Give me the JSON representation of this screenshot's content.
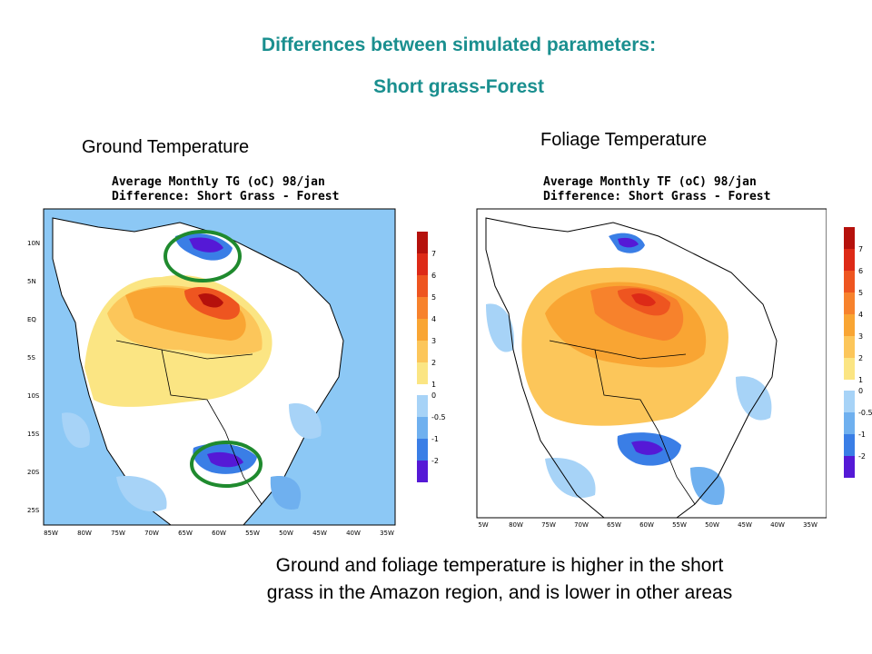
{
  "title_line1": "Differences between simulated parameters:",
  "title_line2": "Short grass-Forest",
  "title_color": "#1a8f8f",
  "ground": {
    "label": "Ground Temperature",
    "header_line1": "Average Monthly TG (oC) 98/jan",
    "header_line2": "Difference: Short Grass - Forest",
    "lat_ticks": [
      "10N",
      "5N",
      "EQ",
      "5S",
      "10S",
      "15S",
      "20S",
      "25S"
    ],
    "lon_ticks": [
      "85W",
      "80W",
      "75W",
      "70W",
      "65W",
      "60W",
      "55W",
      "50W",
      "45W",
      "40W",
      "35W"
    ],
    "colorbar_labels": [
      "7",
      "6",
      "5",
      "4",
      "3",
      "2",
      "1",
      "0",
      "-0.5",
      "-1",
      "-2"
    ]
  },
  "foliage": {
    "label": "Foliage Temperature",
    "header_line1": "Average Monthly TF (oC) 98/jan",
    "header_line2": "Difference: Short Grass - Forest",
    "lon_ticks": [
      "5W",
      "80W",
      "75W",
      "70W",
      "65W",
      "60W",
      "55W",
      "50W",
      "45W",
      "40W",
      "35W"
    ],
    "colorbar_labels": [
      "7",
      "6",
      "5",
      "4",
      "3",
      "2",
      "1",
      "0",
      "-0.5",
      "-1",
      "-2"
    ]
  },
  "colors": {
    "ocean": "#8cc8f5",
    "positive": [
      "#fbe583",
      "#fcc65a",
      "#f9a533",
      "#f7822c",
      "#ee5520",
      "#dd2a17",
      "#b5110c"
    ],
    "negative": [
      "#a7d3f7",
      "#6fb0ef",
      "#3a7ee6",
      "#5519d6"
    ],
    "circle": "#1f8a2e"
  },
  "caption_line1": "Ground and foliage temperature is higher in the short",
  "caption_line2": "grass in the Amazon region, and is lower in other areas"
}
